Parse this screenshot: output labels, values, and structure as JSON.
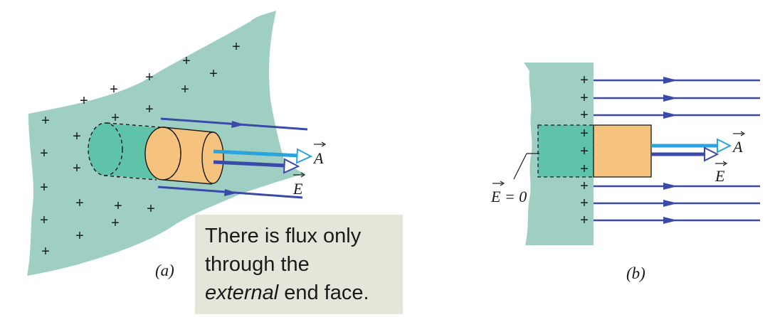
{
  "figure": {
    "panel_a": {
      "label": "(a)",
      "vector_A": "A",
      "vector_E": "E",
      "plus_sign": "+"
    },
    "panel_b": {
      "label": "(b)",
      "vector_A": "A",
      "vector_E": "E",
      "zero_field_label": "E = 0",
      "plus_sign": "+"
    },
    "caption": {
      "line1": "There is flux only",
      "line2": "through the",
      "line3_emph": "external",
      "line3_rest": " end face."
    },
    "colors": {
      "sheet": "#9ecfc2",
      "inner_cylinder": "#5ec3a8",
      "outer_cylinder": "#f6c37e",
      "field_lines": "#3a4aa8",
      "area_vector": "#2aa4dc",
      "caption_bg": "#e5e5da"
    }
  }
}
